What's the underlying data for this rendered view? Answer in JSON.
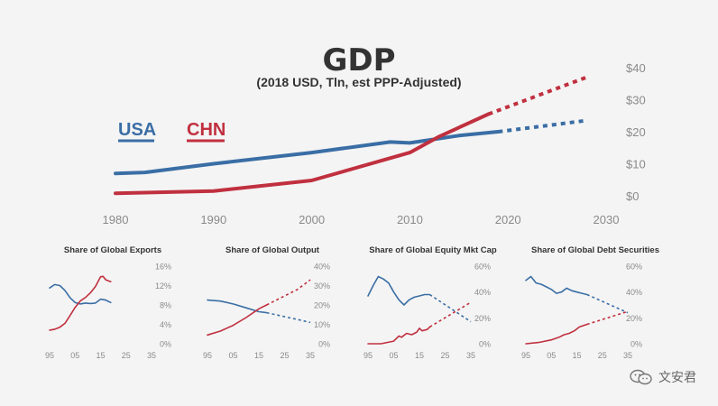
{
  "colors": {
    "usa": "#3a6ea5",
    "chn": "#c0303f",
    "axis_text": "#8a8a8a",
    "title": "#333333"
  },
  "watermark": {
    "text": "文安君",
    "icon": "wechat-icon"
  },
  "chart_data": [
    {
      "type": "line",
      "title": "GDP",
      "subtitle": "(2018 USD, Tln, est PPP-Adjusted)",
      "x_ticks": [
        "1980",
        "1990",
        "2000",
        "2010",
        "2020",
        "2030"
      ],
      "y_ticks": [
        "$0",
        "$10",
        "$20",
        "$30",
        "$40"
      ],
      "xlim": [
        1980,
        2030
      ],
      "ylim": [
        0,
        40
      ],
      "grid": false,
      "y_axis_side": "right",
      "series": [
        {
          "name": "USA",
          "color_key": "usa",
          "actual": {
            "x": [
              1980,
              1983,
              1990,
              2000,
              2008,
              2010,
              2015,
              2019
            ],
            "y": [
              7,
              7.3,
              10,
              13.5,
              16.8,
              16.5,
              18.8,
              20
            ]
          },
          "projected": {
            "x": [
              2019,
              2028
            ],
            "y": [
              20,
              23.5
            ]
          }
        },
        {
          "name": "CHN",
          "color_key": "chn",
          "actual": {
            "x": [
              1980,
              1990,
              2000,
              2010,
              2013,
              2018
            ],
            "y": [
              0.8,
              1.5,
              4.8,
              13.5,
              18.5,
              25.5
            ]
          },
          "projected": {
            "x": [
              2018,
              2028
            ],
            "y": [
              25.5,
              37
            ]
          }
        }
      ]
    },
    {
      "type": "line",
      "title": "Share of Global Exports",
      "x_ticks": [
        "95",
        "05",
        "15",
        "25",
        "35"
      ],
      "y_ticks": [
        "0%",
        "4%",
        "8%",
        "12%",
        "16%"
      ],
      "xlim": [
        1995,
        2035
      ],
      "ylim": [
        0,
        16
      ],
      "series": [
        {
          "name": "USA",
          "color_key": "usa",
          "actual": {
            "x": [
              1995,
              1997,
              1999,
              2001,
              2003,
              2005,
              2007,
              2009,
              2011,
              2013,
              2015,
              2017,
              2019
            ],
            "y": [
              11.5,
              12.2,
              12.0,
              11.0,
              9.5,
              8.5,
              8.2,
              8.4,
              8.3,
              8.4,
              9.2,
              9.0,
              8.5
            ]
          }
        },
        {
          "name": "CHN",
          "color_key": "chn",
          "actual": {
            "x": [
              1995,
              1997,
              1999,
              2001,
              2003,
              2005,
              2007,
              2009,
              2011,
              2013,
              2015,
              2016,
              2017,
              2019
            ],
            "y": [
              2.8,
              3.0,
              3.4,
              4.2,
              5.8,
              7.5,
              8.8,
              9.5,
              10.5,
              11.8,
              13.8,
              13.9,
              13.2,
              12.8
            ]
          }
        }
      ]
    },
    {
      "type": "line",
      "title": "Share of Global Output",
      "x_ticks": [
        "95",
        "05",
        "15",
        "25",
        "35"
      ],
      "y_ticks": [
        "0%",
        "10%",
        "20%",
        "30%",
        "40%"
      ],
      "xlim": [
        1995,
        2035
      ],
      "ylim": [
        0,
        40
      ],
      "series": [
        {
          "name": "USA",
          "color_key": "usa",
          "actual": {
            "x": [
              1995,
              2000,
              2005,
              2010,
              2015,
              2018
            ],
            "y": [
              22.5,
              22.0,
              20.5,
              18.5,
              16.5,
              16.0
            ]
          },
          "projected": {
            "x": [
              2018,
              2030,
              2035
            ],
            "y": [
              16.0,
              12.5,
              11.0
            ]
          }
        },
        {
          "name": "CHN",
          "color_key": "chn",
          "actual": {
            "x": [
              1995,
              2000,
              2005,
              2010,
              2015,
              2018
            ],
            "y": [
              4.5,
              6.5,
              9.5,
              13.5,
              18.0,
              20.0
            ]
          },
          "projected": {
            "x": [
              2018,
              2030,
              2035
            ],
            "y": [
              20.0,
              28.0,
              33.0
            ]
          }
        }
      ]
    },
    {
      "type": "line",
      "title": "Share of Global Equity Mkt Cap",
      "x_ticks": [
        "95",
        "05",
        "15",
        "25",
        "35"
      ],
      "y_ticks": [
        "0%",
        "20%",
        "40%",
        "60%"
      ],
      "xlim": [
        1995,
        2035
      ],
      "ylim": [
        0,
        60
      ],
      "series": [
        {
          "name": "USA",
          "color_key": "usa",
          "actual": {
            "x": [
              1995,
              1997,
              1999,
              2001,
              2003,
              2005,
              2007,
              2009,
              2011,
              2013,
              2015,
              2017,
              2019
            ],
            "y": [
              37,
              45,
              52,
              50,
              47,
              40,
              34,
              30,
              34,
              36,
              37,
              38,
              38
            ]
          },
          "projected": {
            "x": [
              2019,
              2035
            ],
            "y": [
              38,
              17
            ]
          }
        },
        {
          "name": "CHN",
          "color_key": "chn",
          "actual": {
            "x": [
              1995,
              2000,
              2005,
              2007,
              2008,
              2010,
              2012,
              2014,
              2015,
              2016,
              2018,
              2019
            ],
            "y": [
              0,
              0,
              2,
              6,
              5,
              8,
              7,
              9,
              12,
              10,
              11,
              13
            ]
          },
          "projected": {
            "x": [
              2019,
              2035
            ],
            "y": [
              13,
              32
            ]
          }
        }
      ]
    },
    {
      "type": "line",
      "title": "Share of Global Debt Securities",
      "x_ticks": [
        "95",
        "05",
        "15",
        "25",
        "35"
      ],
      "y_ticks": [
        "0%",
        "20%",
        "40%",
        "60%"
      ],
      "xlim": [
        1995,
        2035
      ],
      "ylim": [
        0,
        60
      ],
      "series": [
        {
          "name": "USA",
          "color_key": "usa",
          "actual": {
            "x": [
              1995,
              1997,
              1999,
              2001,
              2003,
              2005,
              2007,
              2009,
              2011,
              2013,
              2015,
              2017,
              2019
            ],
            "y": [
              49,
              52,
              47,
              46,
              44,
              42,
              39,
              40,
              43,
              41,
              40,
              39,
              38
            ]
          },
          "projected": {
            "x": [
              2019,
              2035
            ],
            "y": [
              38,
              24
            ]
          }
        },
        {
          "name": "CHN",
          "color_key": "chn",
          "actual": {
            "x": [
              1995,
              2000,
              2005,
              2008,
              2010,
              2012,
              2014,
              2016,
              2019
            ],
            "y": [
              0,
              1,
              3,
              5,
              7,
              8,
              10,
              13,
              15
            ]
          },
          "projected": {
            "x": [
              2019,
              2035
            ],
            "y": [
              15,
              25
            ]
          }
        }
      ]
    }
  ]
}
